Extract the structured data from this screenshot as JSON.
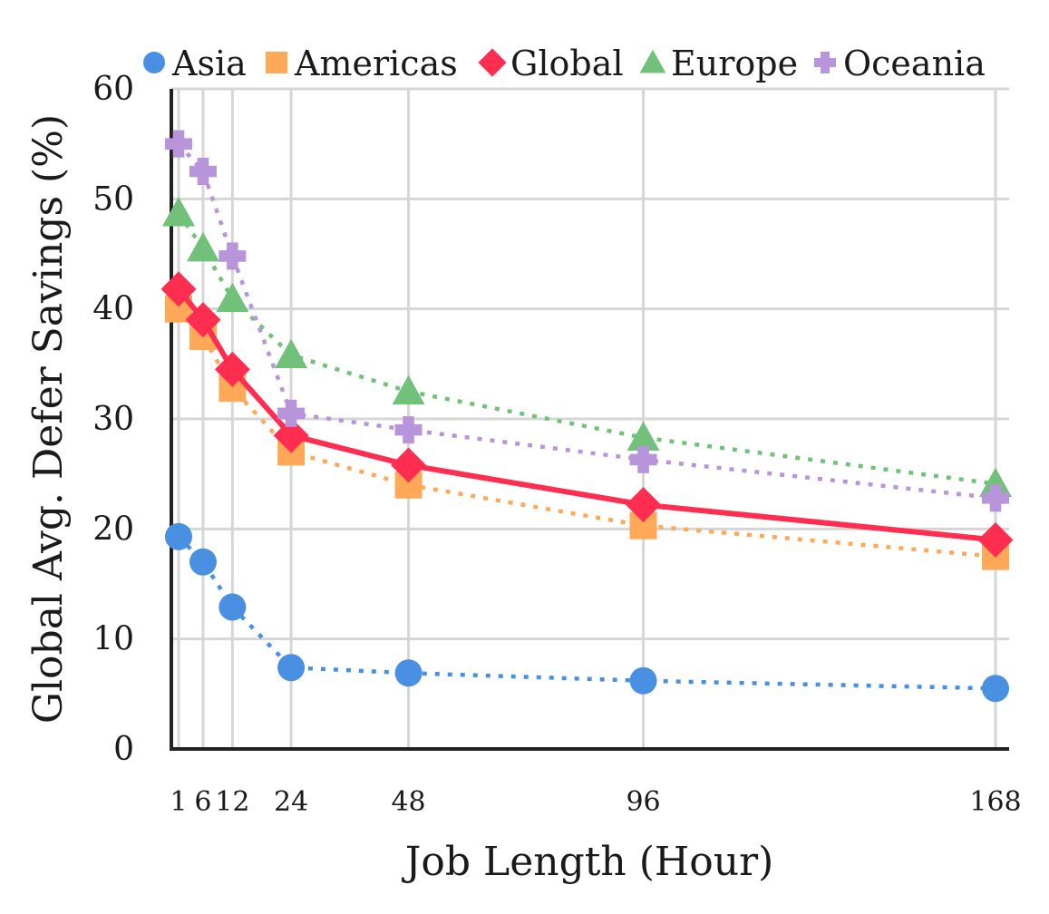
{
  "chart_data": {
    "type": "line",
    "xlabel": "Job Length (Hour)",
    "ylabel": "Global Avg. Defer Savings (%)",
    "x": [
      1,
      6,
      12,
      24,
      48,
      96,
      168
    ],
    "xticks": [
      1,
      6,
      12,
      24,
      48,
      96,
      168
    ],
    "ylim": [
      0,
      60
    ],
    "yticks": [
      0,
      10,
      20,
      30,
      40,
      50,
      60
    ],
    "xlim": [
      0,
      170
    ],
    "grid": true,
    "legend": "top",
    "series": [
      {
        "name": "Asia",
        "values": [
          19.3,
          17.0,
          12.9,
          7.4,
          6.9,
          6.2,
          5.5
        ],
        "color": "#4a90e2",
        "marker": "circle",
        "line": "dotted"
      },
      {
        "name": "Americas",
        "values": [
          40.0,
          37.5,
          32.8,
          27.0,
          24.0,
          20.3,
          17.5
        ],
        "color": "#ffa857",
        "marker": "square",
        "line": "dotted"
      },
      {
        "name": "Global",
        "values": [
          41.8,
          39.0,
          34.5,
          28.5,
          25.8,
          22.2,
          19.0
        ],
        "color": "#ff2d4f",
        "marker": "diamond",
        "line": "solid"
      },
      {
        "name": "Europe",
        "values": [
          48.7,
          45.5,
          40.9,
          35.8,
          32.5,
          28.3,
          24.1
        ],
        "color": "#72c17a",
        "marker": "triangle",
        "line": "dotted"
      },
      {
        "name": "Oceania",
        "values": [
          55.0,
          52.5,
          44.8,
          30.5,
          29.0,
          26.3,
          22.8
        ],
        "color": "#b894db",
        "marker": "plus",
        "line": "dotted"
      }
    ]
  }
}
